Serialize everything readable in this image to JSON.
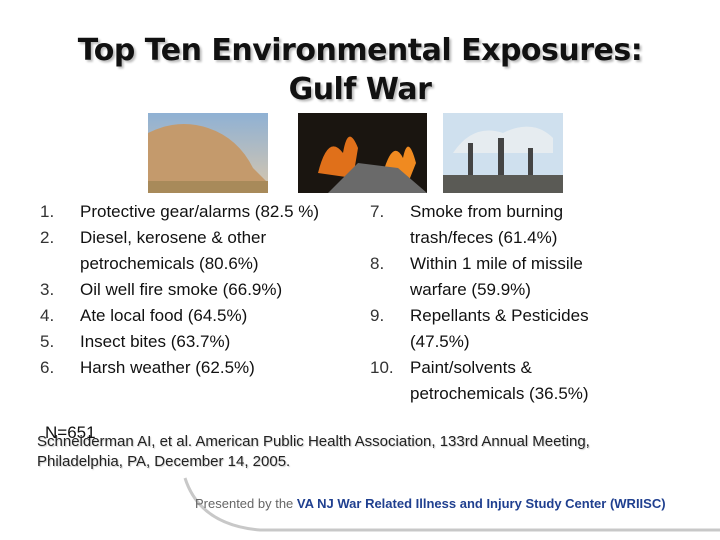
{
  "title": [
    "Top Ten Environmental Exposures:",
    "Gulf War"
  ],
  "left_list": [
    {
      "number": "1.",
      "text": "Protective gear/alarms (82.5 %)"
    },
    {
      "number": "2.",
      "text": "Diesel, kerosene & other petrochemicals (80.6%)"
    },
    {
      "number": "3.",
      "text": "Oil well fire smoke (66.9%)"
    },
    {
      "number": "4.",
      "text": "Ate local food (64.5%)"
    },
    {
      "number": "5.",
      "text": "Insect bites (63.7%)"
    },
    {
      "number": "6.",
      "text": "Harsh weather (62.5%)"
    }
  ],
  "right_list": [
    {
      "number": "7.",
      "text": "Smoke from burning trash/feces (61.4%)"
    },
    {
      "number": "8.",
      "text": "Within 1 mile of missile warfare (59.9%)"
    },
    {
      "number": "9.",
      "text": "Repellants & Pesticides (47.5%)"
    },
    {
      "number": "10.",
      "text": "Paint/solvents & petrochemicals (36.5%)"
    }
  ],
  "sample_size": "N=651",
  "citation": [
    "Schneiderman AI, et al. American Public Health Association, 133rd Annual Meeting,",
    "Philadelphia, PA, December 14, 2005."
  ],
  "footer": {
    "prefix": "Presented by the",
    "center": "VA NJ War Related Illness and Injury Study Center (WRIISC)"
  }
}
